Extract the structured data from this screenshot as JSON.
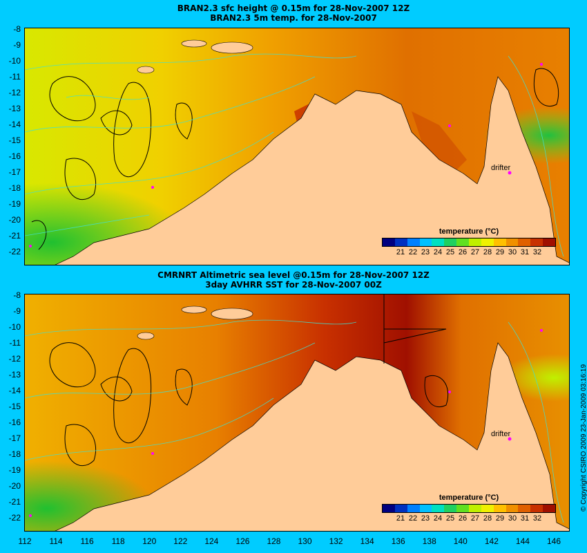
{
  "panels": [
    {
      "title_line1": "BRAN2.3 sfc height @ 0.15m for 28-Nov-2007 12Z",
      "title_line2": "BRAN2.3 5m temp. for 28-Nov-2007",
      "drifter_label": "drifter"
    },
    {
      "title_line1": "CMRNRT Altimetric sea level  @0.15m  for 28-Nov-2007 12Z",
      "title_line2": "3day AVHRR SST for 28-Nov-2007 00Z",
      "drifter_label": "drifter"
    }
  ],
  "axes": {
    "lat_ticks": [
      "-8",
      "-9",
      "-10",
      "-11",
      "-12",
      "-13",
      "-14",
      "-15",
      "-16",
      "-17",
      "-18",
      "-19",
      "-20",
      "-21",
      "-22"
    ],
    "lon_ticks": [
      "112",
      "114",
      "116",
      "118",
      "120",
      "122",
      "124",
      "126",
      "128",
      "130",
      "132",
      "134",
      "136",
      "138",
      "140",
      "142",
      "144",
      "146"
    ]
  },
  "legend": {
    "title": "temperature (°C)",
    "ticks": [
      "21",
      "22",
      "23",
      "24",
      "25",
      "26",
      "27",
      "28",
      "29",
      "30",
      "31",
      "32"
    ],
    "colors": [
      "#000080",
      "#0030c0",
      "#0080ff",
      "#00c0ff",
      "#00e0c0",
      "#20d060",
      "#60e020",
      "#c0f000",
      "#f0f000",
      "#ffc000",
      "#f09000",
      "#e06000",
      "#c83000",
      "#a01000"
    ]
  },
  "copyright": "© Copyright CSIRO 2009   23-Jan-2009 03:16:19"
}
